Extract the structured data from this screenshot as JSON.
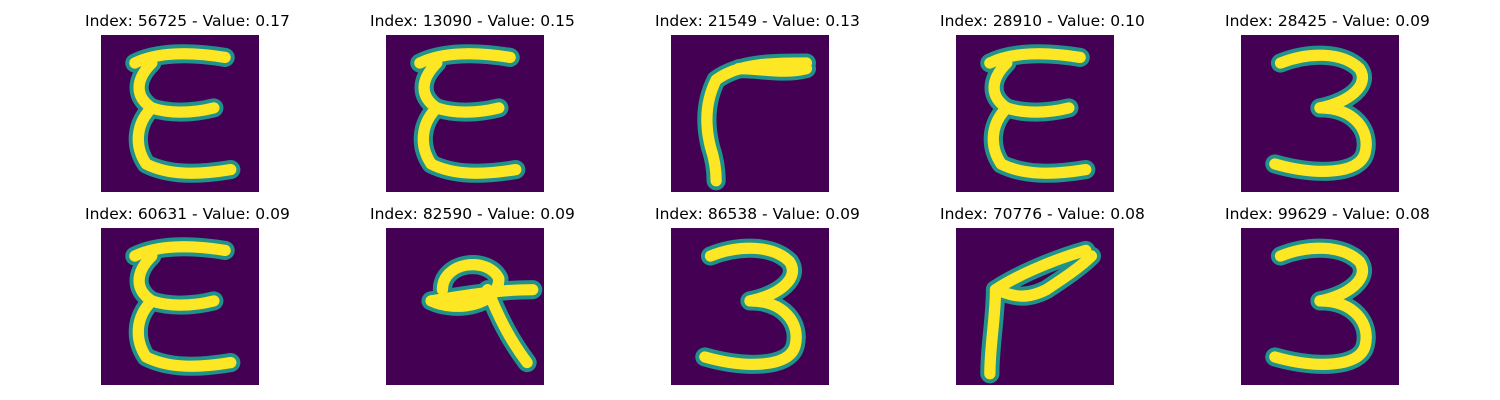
{
  "chart_data": {
    "type": "image-grid",
    "colormap": "viridis",
    "colors": {
      "background": "#440154",
      "mid": "#21918c",
      "stroke": "#fde725"
    },
    "panels": [
      {
        "title": "Index: 56725 - Value: 0.17",
        "index": 56725,
        "value": 0.17,
        "glyph": "E"
      },
      {
        "title": "Index: 13090 - Value: 0.15",
        "index": 13090,
        "value": 0.15,
        "glyph": "E"
      },
      {
        "title": "Index: 21549 - Value: 0.13",
        "index": 21549,
        "value": 0.13,
        "glyph": "hook"
      },
      {
        "title": "Index: 28910 - Value: 0.10",
        "index": 28910,
        "value": 0.1,
        "glyph": "E"
      },
      {
        "title": "Index: 28425 - Value: 0.09",
        "index": 28425,
        "value": 0.09,
        "glyph": "3"
      },
      {
        "title": "Index: 60631 - Value: 0.09",
        "index": 60631,
        "value": 0.09,
        "glyph": "E"
      },
      {
        "title": "Index: 82590 - Value: 0.09",
        "index": 82590,
        "value": 0.09,
        "glyph": "loop"
      },
      {
        "title": "Index: 86538 - Value: 0.09",
        "index": 86538,
        "value": 0.09,
        "glyph": "3"
      },
      {
        "title": "Index: 70776 - Value: 0.08",
        "index": 70776,
        "value": 0.08,
        "glyph": "angle"
      },
      {
        "title": "Index: 99629 - Value: 0.08",
        "index": 99629,
        "value": 0.08,
        "glyph": "3"
      }
    ]
  }
}
